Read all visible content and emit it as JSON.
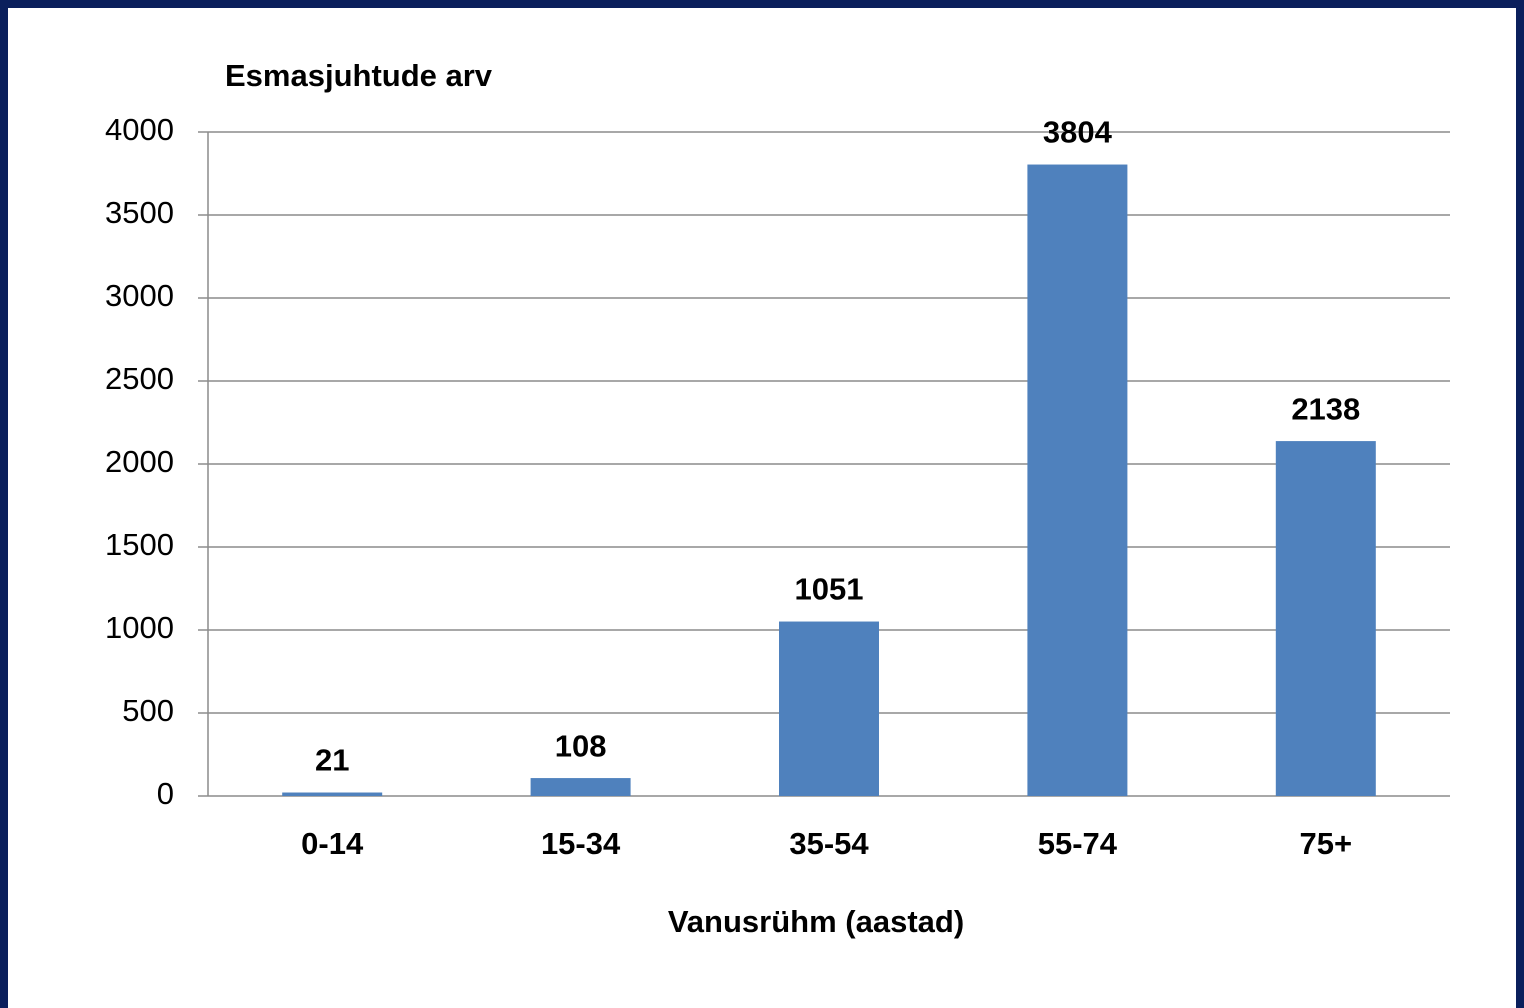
{
  "chart_data": {
    "type": "bar",
    "title": "Esmasjuhtude arv",
    "x_label": "Vanusrühm (aastad)",
    "categories": [
      "0-14",
      "15-34",
      "35-54",
      "55-74",
      "75+"
    ],
    "values": [
      21,
      108,
      1051,
      3804,
      2138
    ],
    "color": "#4f81bd",
    "ylim": [
      0,
      4000
    ],
    "yticks": [
      0,
      500,
      1000,
      1500,
      2000,
      2500,
      3000,
      3500,
      4000
    ],
    "grid": true
  }
}
